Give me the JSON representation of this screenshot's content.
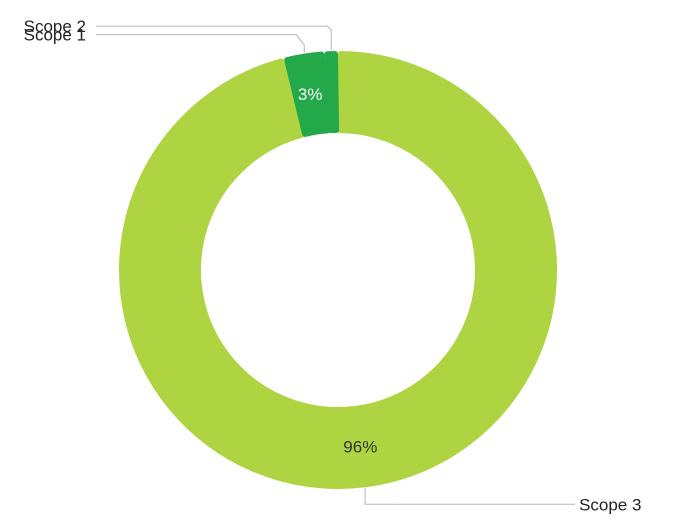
{
  "chart_data": {
    "type": "pie",
    "variant": "donut",
    "title": "",
    "legend": "none",
    "slices": [
      {
        "name": "Scope 3",
        "value": 96,
        "data_label": "96%",
        "color": "#afd442",
        "label_color": "#333333"
      },
      {
        "name": "Scope 1",
        "value": 3,
        "data_label": "3%",
        "color": "#23a84a",
        "label_color": "#ffffff"
      },
      {
        "name": "Scope 2",
        "value": 1,
        "data_label": "",
        "color": "#23a84a",
        "label_color": "#ffffff"
      }
    ]
  }
}
